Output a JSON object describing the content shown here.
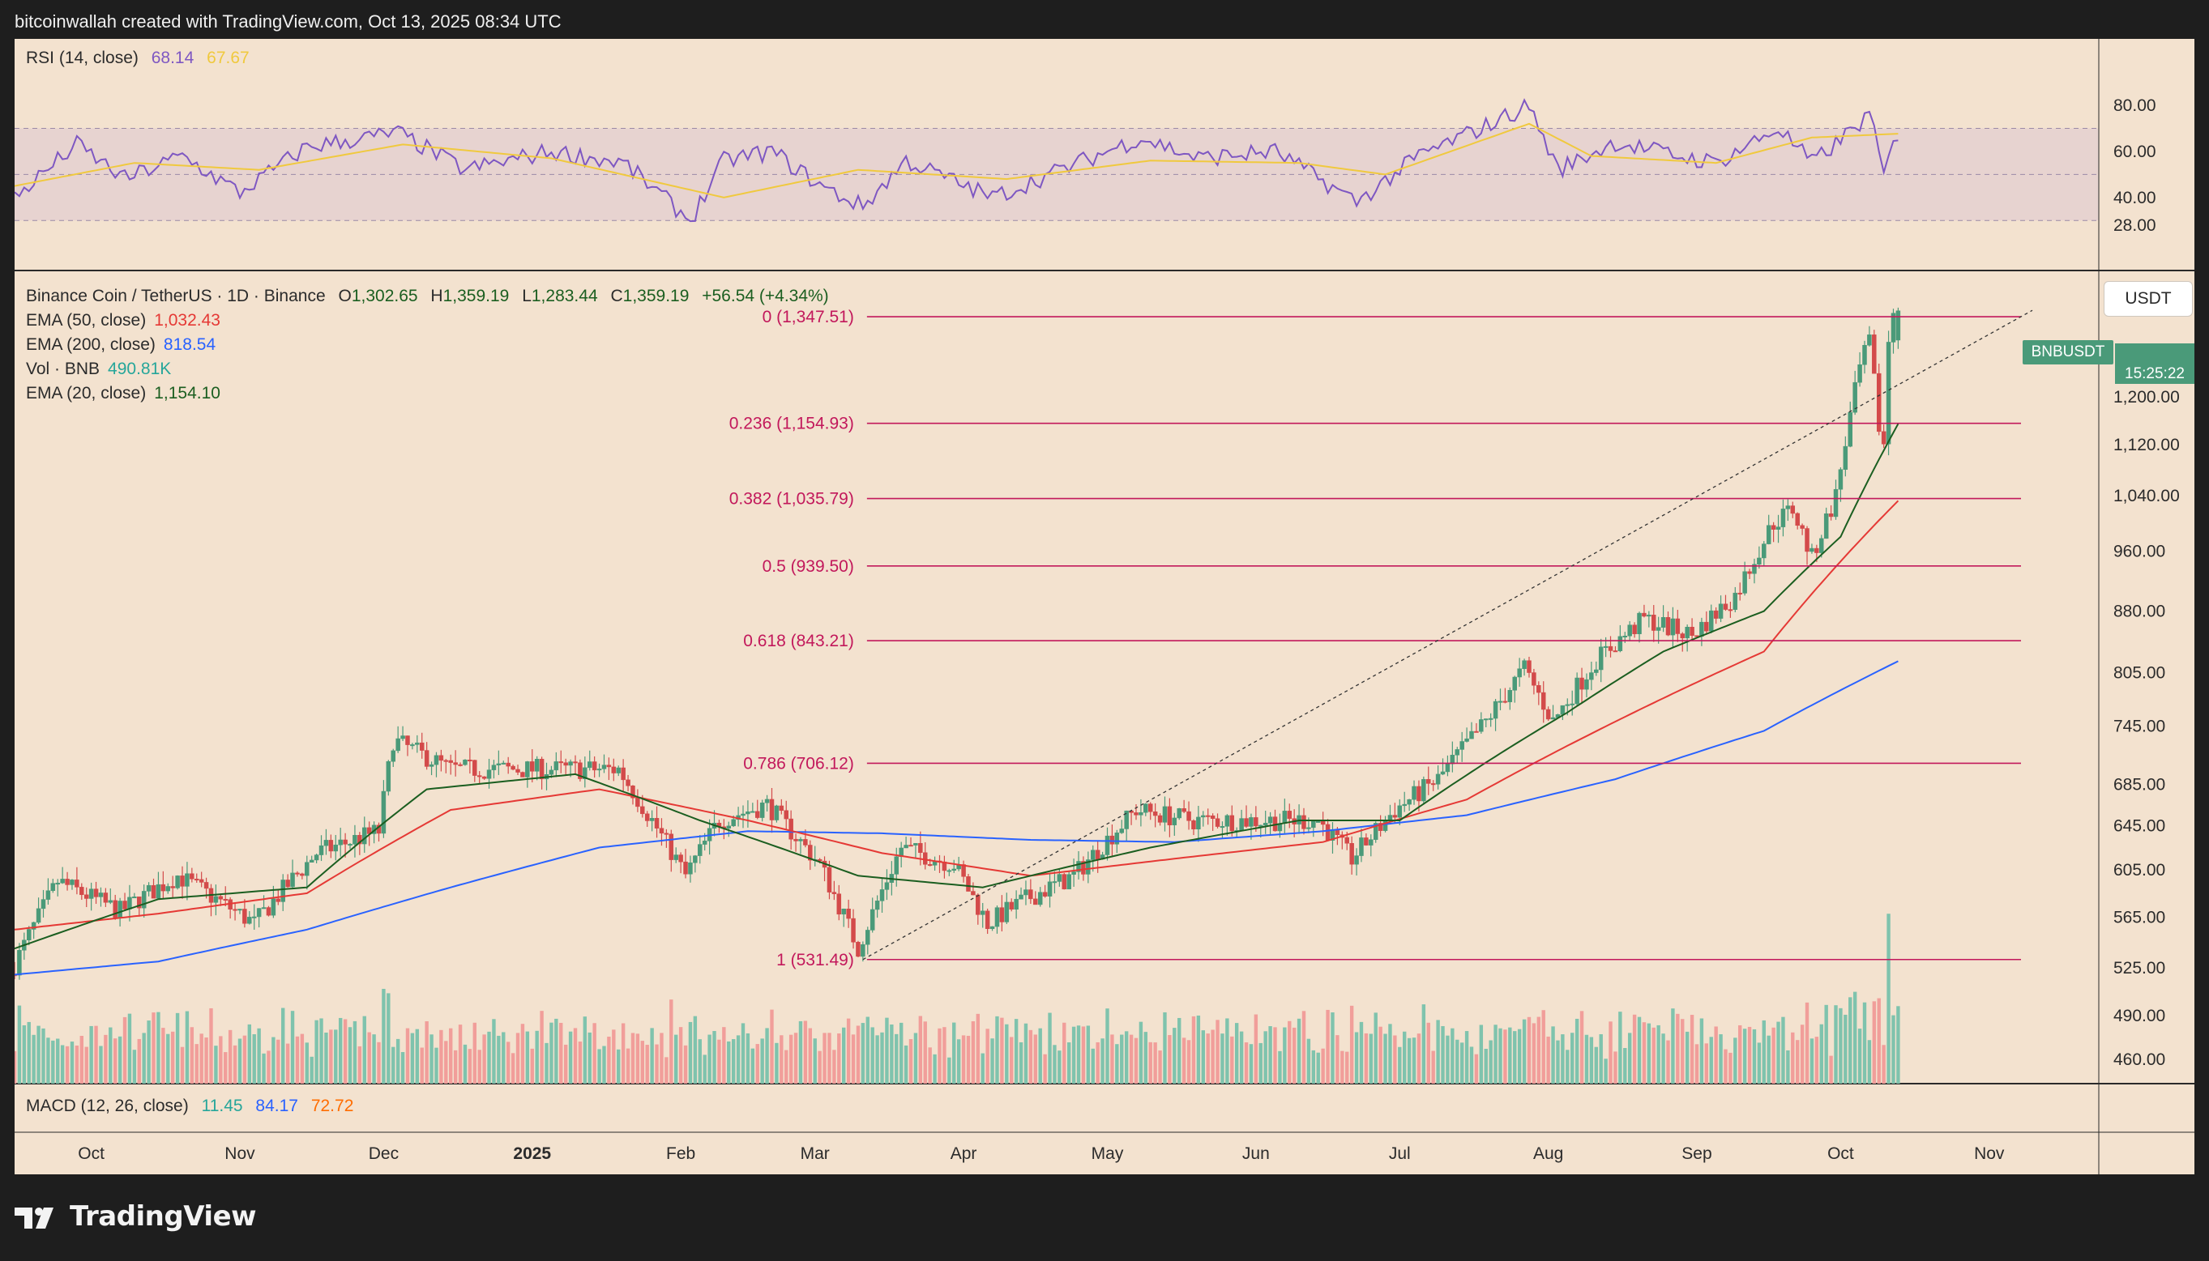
{
  "header": {
    "attribution": "bitcoinwallah created with TradingView.com, Oct 13, 2025 08:34 UTC"
  },
  "footer": {
    "brand": "TradingView"
  },
  "colors": {
    "background": "#f3e2cf",
    "rsi_band": "#e6d2cf",
    "rsi_line": "#7e57c2",
    "rsi_ma": "#f0c93e",
    "up_candle": "#4a9a79",
    "down_candle": "#d34a4a",
    "ema20": "#1b5e20",
    "ema50": "#e53935",
    "ema200": "#2962ff",
    "fib": "#c2185b",
    "vol_up": "#7fc3ad",
    "vol_down": "#f19e9a"
  },
  "rsi_panel": {
    "title": "RSI (14, close)",
    "value1": "68.14",
    "value2": "67.67",
    "axis_ticks": [
      "80.00",
      "60.00",
      "40.00",
      "28.00"
    ]
  },
  "main_legend": {
    "symbol": "Binance Coin / TetherUS · 1D · Binance",
    "o_label": "O",
    "o_value": "1,302.65",
    "h_label": "H",
    "h_value": "1,359.19",
    "l_label": "L",
    "l_value": "1,283.44",
    "c_label": "C",
    "c_value": "1,359.19",
    "change": "+56.54 (+4.34%)",
    "ema50_label": "EMA (50, close)",
    "ema50_value": "1,032.43",
    "ema200_label": "EMA (200, close)",
    "ema200_value": "818.54",
    "vol_label": "Vol · BNB",
    "vol_value": "490.81K",
    "ema20_label": "EMA (20, close)",
    "ema20_value": "1,154.10"
  },
  "price_scale": {
    "currency_button": "USDT",
    "symbol_tag": "BNBUSDT",
    "countdown": "15:25:22",
    "ticks": [
      "1,200.00",
      "1,120.00",
      "1,040.00",
      "960.00",
      "880.00",
      "805.00",
      "745.00",
      "685.00",
      "645.00",
      "605.00",
      "565.00",
      "525.00",
      "490.00",
      "460.00"
    ]
  },
  "macd_panel": {
    "title": "MACD (12, 26, close)",
    "value1": "11.45",
    "value2": "84.17",
    "value3": "72.72"
  },
  "time_axis": [
    "Oct",
    "Nov",
    "Dec",
    "2025",
    "Feb",
    "Mar",
    "Apr",
    "May",
    "Jun",
    "Jul",
    "Aug",
    "Sep",
    "Oct",
    "Nov"
  ],
  "chart_data": {
    "type": "candlestick",
    "title": "Binance Coin / TetherUS · 1D · Binance",
    "y_scale": "log",
    "x_range": [
      "2024-09-15",
      "2025-11-10"
    ],
    "fibonacci_levels": [
      {
        "label": "0 (1,347.51)",
        "level": 0,
        "price": 1347.51
      },
      {
        "label": "0.236 (1,154.93)",
        "level": 0.236,
        "price": 1154.93
      },
      {
        "label": "0.382 (1,035.79)",
        "level": 0.382,
        "price": 1035.79
      },
      {
        "label": "0.5 (939.50)",
        "level": 0.5,
        "price": 939.5
      },
      {
        "label": "0.618 (843.21)",
        "level": 0.618,
        "price": 843.21
      },
      {
        "label": "0.786 (706.12)",
        "level": 0.786,
        "price": 706.12
      },
      {
        "label": "1 (531.49)",
        "level": 1,
        "price": 531.49
      }
    ],
    "trendline": {
      "from": [
        "2025-03-11",
        531.49
      ],
      "to": [
        "2025-11-10",
        1360
      ]
    },
    "price_anchors": [
      [
        "2024-09-15",
        520
      ],
      [
        "2024-09-25",
        595
      ],
      [
        "2024-10-08",
        570
      ],
      [
        "2024-10-20",
        600
      ],
      [
        "2024-11-05",
        560
      ],
      [
        "2024-11-18",
        620
      ],
      [
        "2024-12-01",
        640
      ],
      [
        "2024-12-04",
        730
      ],
      [
        "2024-12-16",
        700
      ],
      [
        "2024-12-28",
        700
      ],
      [
        "2025-01-10",
        700
      ],
      [
        "2025-01-20",
        700
      ],
      [
        "2025-02-03",
        600
      ],
      [
        "2025-02-10",
        650
      ],
      [
        "2025-02-20",
        665
      ],
      [
        "2025-03-03",
        610
      ],
      [
        "2025-03-11",
        540
      ],
      [
        "2025-03-20",
        625
      ],
      [
        "2025-03-31",
        610
      ],
      [
        "2025-04-07",
        560
      ],
      [
        "2025-04-15",
        580
      ],
      [
        "2025-04-25",
        600
      ],
      [
        "2025-05-08",
        660
      ],
      [
        "2025-05-20",
        650
      ],
      [
        "2025-06-05",
        650
      ],
      [
        "2025-06-15",
        650
      ],
      [
        "2025-06-22",
        615
      ],
      [
        "2025-07-01",
        660
      ],
      [
        "2025-07-10",
        690
      ],
      [
        "2025-07-20",
        750
      ],
      [
        "2025-07-28",
        810
      ],
      [
        "2025-08-03",
        750
      ],
      [
        "2025-08-12",
        820
      ],
      [
        "2025-08-22",
        870
      ],
      [
        "2025-09-01",
        850
      ],
      [
        "2025-09-10",
        900
      ],
      [
        "2025-09-18",
        1000
      ],
      [
        "2025-09-22",
        1020
      ],
      [
        "2025-09-26",
        950
      ],
      [
        "2025-10-01",
        1040
      ],
      [
        "2025-10-06",
        1250
      ],
      [
        "2025-10-08",
        1300
      ],
      [
        "2025-10-10",
        1150
      ],
      [
        "2025-10-11",
        1120
      ],
      [
        "2025-10-12",
        1302.65
      ],
      [
        "2025-10-13",
        1359.19
      ]
    ],
    "ema20_anchors": [
      [
        "2024-09-15",
        540
      ],
      [
        "2024-10-15",
        580
      ],
      [
        "2024-11-15",
        590
      ],
      [
        "2024-12-10",
        680
      ],
      [
        "2025-01-10",
        695
      ],
      [
        "2025-02-05",
        650
      ],
      [
        "2025-03-10",
        600
      ],
      [
        "2025-04-05",
        590
      ],
      [
        "2025-05-10",
        625
      ],
      [
        "2025-06-10",
        650
      ],
      [
        "2025-07-01",
        650
      ],
      [
        "2025-07-20",
        710
      ],
      [
        "2025-08-05",
        760
      ],
      [
        "2025-08-25",
        830
      ],
      [
        "2025-09-15",
        880
      ],
      [
        "2025-10-01",
        980
      ],
      [
        "2025-10-13",
        1154.1
      ]
    ],
    "ema50_anchors": [
      [
        "2024-09-15",
        555
      ],
      [
        "2024-10-15",
        568
      ],
      [
        "2024-11-15",
        585
      ],
      [
        "2024-12-15",
        660
      ],
      [
        "2025-01-15",
        680
      ],
      [
        "2025-02-15",
        650
      ],
      [
        "2025-03-15",
        620
      ],
      [
        "2025-04-15",
        600
      ],
      [
        "2025-05-15",
        615
      ],
      [
        "2025-06-15",
        630
      ],
      [
        "2025-07-15",
        670
      ],
      [
        "2025-08-15",
        750
      ],
      [
        "2025-09-15",
        830
      ],
      [
        "2025-10-13",
        1032.43
      ]
    ],
    "ema200_anchors": [
      [
        "2024-09-15",
        520
      ],
      [
        "2024-10-15",
        530
      ],
      [
        "2024-11-15",
        555
      ],
      [
        "2024-12-15",
        590
      ],
      [
        "2025-01-15",
        625
      ],
      [
        "2025-02-15",
        640
      ],
      [
        "2025-03-15",
        638
      ],
      [
        "2025-04-15",
        632
      ],
      [
        "2025-05-15",
        630
      ],
      [
        "2025-06-15",
        640
      ],
      [
        "2025-07-15",
        655
      ],
      [
        "2025-08-15",
        690
      ],
      [
        "2025-09-15",
        740
      ],
      [
        "2025-10-13",
        818.54
      ]
    ],
    "rsi_anchors": [
      [
        "2024-09-15",
        40
      ],
      [
        "2024-09-28",
        63
      ],
      [
        "2024-10-08",
        48
      ],
      [
        "2024-10-20",
        58
      ],
      [
        "2024-11-01",
        42
      ],
      [
        "2024-11-15",
        62
      ],
      [
        "2024-12-04",
        68
      ],
      [
        "2024-12-18",
        52
      ],
      [
        "2025-01-05",
        60
      ],
      [
        "2025-01-20",
        55
      ],
      [
        "2025-02-03",
        30
      ],
      [
        "2025-02-10",
        56
      ],
      [
        "2025-02-20",
        60
      ],
      [
        "2025-03-03",
        44
      ],
      [
        "2025-03-11",
        36
      ],
      [
        "2025-03-20",
        56
      ],
      [
        "2025-04-07",
        40
      ],
      [
        "2025-04-25",
        55
      ],
      [
        "2025-05-08",
        66
      ],
      [
        "2025-05-20",
        57
      ],
      [
        "2025-06-05",
        60
      ],
      [
        "2025-06-22",
        38
      ],
      [
        "2025-07-05",
        58
      ],
      [
        "2025-07-20",
        72
      ],
      [
        "2025-07-28",
        80
      ],
      [
        "2025-08-03",
        52
      ],
      [
        "2025-08-15",
        64
      ],
      [
        "2025-08-28",
        58
      ],
      [
        "2025-09-05",
        55
      ],
      [
        "2025-09-18",
        70
      ],
      [
        "2025-09-25",
        55
      ],
      [
        "2025-10-01",
        65
      ],
      [
        "2025-10-07",
        76
      ],
      [
        "2025-10-10",
        50
      ],
      [
        "2025-10-13",
        68.14
      ]
    ],
    "rsi_ma_anchors": [
      [
        "2024-09-15",
        45
      ],
      [
        "2024-10-10",
        55
      ],
      [
        "2024-11-05",
        52
      ],
      [
        "2024-12-05",
        63
      ],
      [
        "2025-01-05",
        57
      ],
      [
        "2025-02-10",
        40
      ],
      [
        "2025-03-10",
        52
      ],
      [
        "2025-04-10",
        48
      ],
      [
        "2025-05-10",
        56
      ],
      [
        "2025-06-10",
        55
      ],
      [
        "2025-06-28",
        50
      ],
      [
        "2025-07-28",
        72
      ],
      [
        "2025-08-10",
        58
      ],
      [
        "2025-09-05",
        55
      ],
      [
        "2025-09-25",
        66
      ],
      [
        "2025-10-13",
        67.67
      ]
    ]
  }
}
